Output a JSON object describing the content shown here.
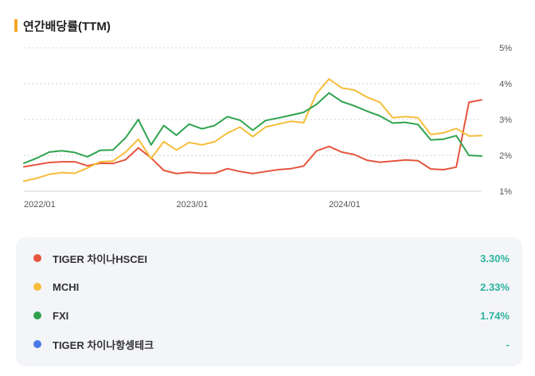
{
  "header": {
    "title": "연간배당률(TTM)"
  },
  "chart_data": {
    "type": "line",
    "y_unit": "%",
    "ylim": [
      1,
      5
    ],
    "y_ticks": [
      "1%",
      "2%",
      "3%",
      "4%",
      "5%"
    ],
    "x_ticks": [
      "2022/01",
      "2023/01",
      "2024/01"
    ],
    "grid": true,
    "series": [
      {
        "name": "TIGER 차이나HSCEI",
        "color": "#e5553d",
        "values": [
          1.68,
          1.74,
          1.8,
          1.82,
          1.82,
          1.71,
          1.78,
          1.77,
          1.88,
          2.21,
          1.93,
          1.58,
          1.49,
          1.53,
          1.5,
          1.5,
          1.63,
          1.55,
          1.49,
          1.55,
          1.6,
          1.63,
          1.7,
          2.12,
          2.25,
          2.09,
          2.02,
          1.86,
          1.81,
          1.84,
          1.87,
          1.85,
          1.62,
          1.6,
          1.67,
          3.48,
          3.55
        ]
      },
      {
        "name": "MCHI",
        "color": "#f5bd3a",
        "values": [
          1.28,
          1.36,
          1.47,
          1.52,
          1.5,
          1.65,
          1.82,
          1.84,
          2.09,
          2.45,
          1.91,
          2.38,
          2.15,
          2.36,
          2.29,
          2.38,
          2.62,
          2.79,
          2.52,
          2.79,
          2.87,
          2.95,
          2.91,
          3.72,
          4.13,
          3.88,
          3.82,
          3.62,
          3.48,
          3.05,
          3.08,
          3.05,
          2.58,
          2.63,
          2.75,
          2.54,
          2.55
        ]
      },
      {
        "name": "FXI",
        "color": "#2fa34e",
        "values": [
          1.78,
          1.92,
          2.09,
          2.13,
          2.08,
          1.96,
          2.14,
          2.15,
          2.49,
          3.0,
          2.29,
          2.83,
          2.56,
          2.87,
          2.74,
          2.83,
          3.08,
          2.98,
          2.7,
          2.97,
          3.04,
          3.12,
          3.2,
          3.42,
          3.74,
          3.5,
          3.38,
          3.23,
          3.1,
          2.9,
          2.92,
          2.86,
          2.43,
          2.45,
          2.55,
          2.0,
          1.98
        ]
      }
    ]
  },
  "legend": [
    {
      "name": "TIGER 차이나HSCEI",
      "value": "3.30%",
      "color": "#e5553d"
    },
    {
      "name": "MCHI",
      "value": "2.33%",
      "color": "#f5bd3a"
    },
    {
      "name": "FXI",
      "value": "1.74%",
      "color": "#2fa34e"
    },
    {
      "name": "TIGER 차이나항셍테크",
      "value": "-",
      "color": "#4a7be8"
    }
  ]
}
